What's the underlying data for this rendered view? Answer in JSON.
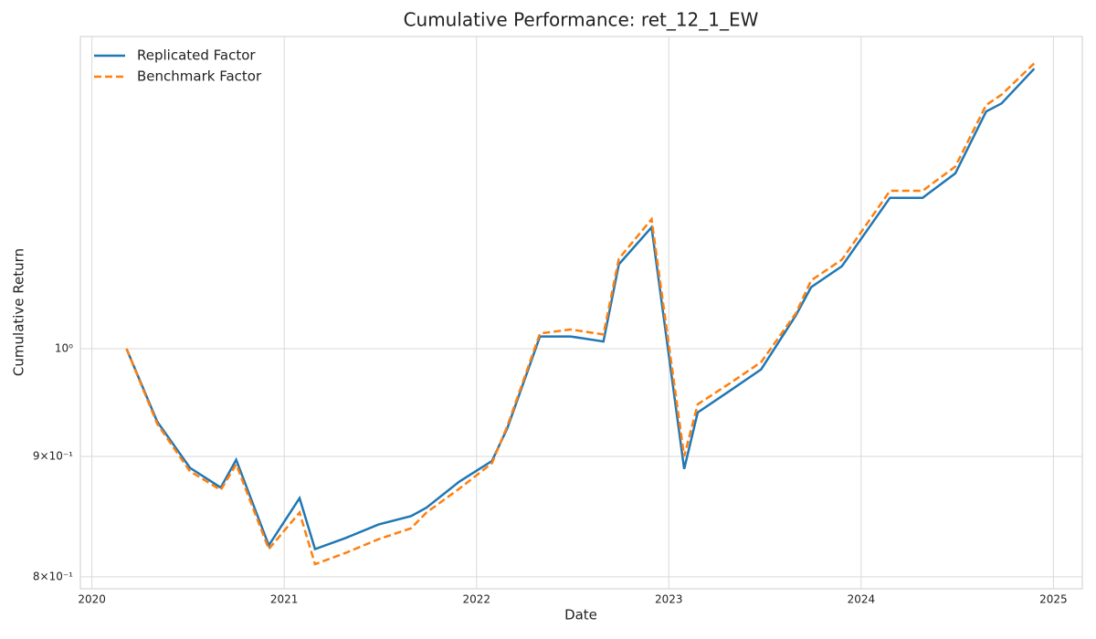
{
  "chart_data": {
    "type": "line",
    "title": "Cumulative Performance: ret_12_1_EW",
    "x_label": "Date",
    "y_label": "Cumulative Return",
    "x": [
      2020.18,
      2020.34,
      2020.51,
      2020.67,
      2020.75,
      2020.92,
      2021.08,
      2021.16,
      2021.32,
      2021.49,
      2021.66,
      2021.74,
      2021.91,
      2022.08,
      2022.16,
      2022.33,
      2022.49,
      2022.66,
      2022.74,
      2022.91,
      2023.08,
      2023.15,
      2023.32,
      2023.48,
      2023.66,
      2023.74,
      2023.9,
      2024.15,
      2024.32,
      2024.49,
      2024.65,
      2024.73,
      2024.9
    ],
    "series": [
      {
        "name": "Replicated Factor",
        "color": "#1f77b4",
        "linestyle": "solid",
        "values": [
          1.0,
          0.931,
          0.89,
          0.873,
          0.897,
          0.825,
          0.864,
          0.822,
          0.831,
          0.842,
          0.849,
          0.856,
          0.878,
          0.896,
          0.925,
          1.012,
          1.012,
          1.007,
          1.086,
          1.126,
          0.889,
          0.9395,
          0.96,
          0.98,
          1.033,
          1.062,
          1.084,
          1.159,
          1.159,
          1.187,
          1.261,
          1.271,
          1.315
        ]
      },
      {
        "name": "Benchmark Factor",
        "color": "#ff7f0e",
        "linestyle": "dashed",
        "values": [
          1.0,
          0.929,
          0.887,
          0.871,
          0.893,
          0.822,
          0.852,
          0.81,
          0.819,
          0.83,
          0.839,
          0.852,
          0.872,
          0.894,
          0.927,
          1.015,
          1.019,
          1.014,
          1.092,
          1.135,
          0.9,
          0.947,
          0.967,
          0.987,
          1.035,
          1.069,
          1.091,
          1.167,
          1.167,
          1.195,
          1.269,
          1.282,
          1.322
        ]
      }
    ],
    "xlim": [
      2019.94,
      2025.15
    ],
    "xticks": [
      2020,
      2021,
      2022,
      2023,
      2024,
      2025
    ],
    "ylim": [
      0.7907,
      1.357
    ],
    "yscale": "log",
    "yticks": [
      {
        "value": 0.8,
        "label": "8×10⁻¹"
      },
      {
        "value": 0.9,
        "label": "9×10⁻¹"
      },
      {
        "value": 1,
        "label": "10⁰"
      }
    ],
    "grid": true,
    "legend": "upper left"
  }
}
